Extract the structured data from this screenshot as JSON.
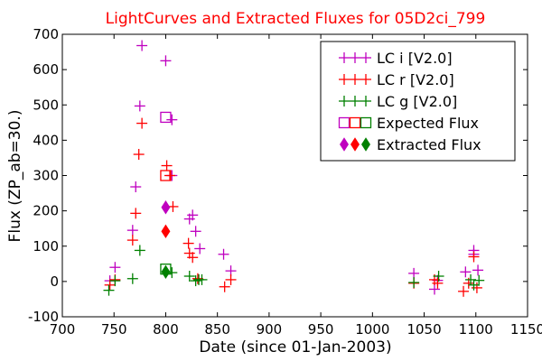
{
  "chart_data": {
    "type": "scatter",
    "title": "LightCurves and Extracted Fluxes for 05D2ci_799",
    "xlabel": "Date (since 01-Jan-2003)",
    "ylabel": "Flux (ZP_ab=30.)",
    "xlim": [
      700,
      1150
    ],
    "ylim": [
      -100,
      700
    ],
    "xticks": [
      700,
      750,
      800,
      850,
      900,
      950,
      1000,
      1050,
      1100,
      1150
    ],
    "yticks": [
      -100,
      0,
      100,
      200,
      300,
      400,
      500,
      600,
      700
    ],
    "grid": false,
    "legend_position": "top-right",
    "series": [
      {
        "name": "LC i [V2.0]",
        "marker": "plus",
        "color": "#bf00bf",
        "points": [
          [
            746,
            2
          ],
          [
            751,
            40
          ],
          [
            768,
            145
          ],
          [
            771,
            268
          ],
          [
            775,
            497
          ],
          [
            777,
            668
          ],
          [
            800,
            625
          ],
          [
            806,
            458
          ],
          [
            806,
            300
          ],
          [
            823,
            177
          ],
          [
            826,
            188
          ],
          [
            829,
            142
          ],
          [
            833,
            93
          ],
          [
            856,
            77
          ],
          [
            863,
            30
          ],
          [
            1040,
            23
          ],
          [
            1060,
            -22
          ],
          [
            1063,
            3
          ],
          [
            1090,
            27
          ],
          [
            1098,
            88
          ],
          [
            1098,
            77
          ],
          [
            1102,
            32
          ]
        ]
      },
      {
        "name": "LC r [V2.0]",
        "marker": "plus",
        "color": "#ff0000",
        "points": [
          [
            746,
            -10
          ],
          [
            751,
            5
          ],
          [
            768,
            117
          ],
          [
            771,
            193
          ],
          [
            774,
            360
          ],
          [
            777,
            448
          ],
          [
            801,
            328
          ],
          [
            804,
            300
          ],
          [
            807,
            212
          ],
          [
            822,
            108
          ],
          [
            823,
            80
          ],
          [
            826,
            68
          ],
          [
            831,
            8
          ],
          [
            857,
            -15
          ],
          [
            863,
            5
          ],
          [
            1040,
            -5
          ],
          [
            1060,
            5
          ],
          [
            1063,
            -5
          ],
          [
            1088,
            -28
          ],
          [
            1093,
            -5
          ],
          [
            1098,
            70
          ],
          [
            1101,
            -18
          ]
        ]
      },
      {
        "name": "LC g [V2.0]",
        "marker": "plus",
        "color": "#008000",
        "points": [
          [
            745,
            -25
          ],
          [
            751,
            2
          ],
          [
            768,
            8
          ],
          [
            775,
            88
          ],
          [
            806,
            25
          ],
          [
            823,
            15
          ],
          [
            829,
            2
          ],
          [
            832,
            5
          ],
          [
            835,
            5
          ],
          [
            1040,
            -3
          ],
          [
            1064,
            15
          ],
          [
            1095,
            5
          ],
          [
            1098,
            -10
          ],
          [
            1103,
            3
          ]
        ]
      },
      {
        "name": "Expected Flux",
        "marker": "open-square",
        "colors": [
          "#bf00bf",
          "#ff0000",
          "#008000"
        ],
        "points": [
          [
            800,
            465
          ],
          [
            800,
            300
          ],
          [
            800,
            35
          ]
        ]
      },
      {
        "name": "Extracted Flux",
        "marker": "diamond",
        "colors": [
          "#bf00bf",
          "#ff0000",
          "#008000"
        ],
        "points": [
          [
            800,
            210
          ],
          [
            800,
            142
          ],
          [
            800,
            27
          ]
        ]
      }
    ]
  }
}
